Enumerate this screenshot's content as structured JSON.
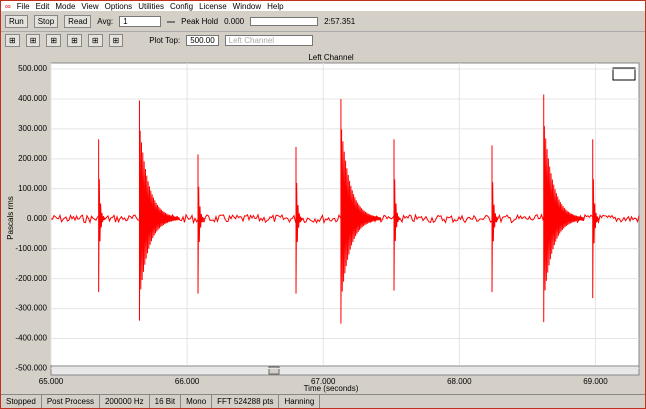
{
  "menu": [
    "File",
    "Edit",
    "Mode",
    "View",
    "Options",
    "Utilities",
    "Config",
    "License",
    "Window",
    "Help"
  ],
  "toolbar": {
    "run": "Run",
    "stop": "Stop",
    "read": "Read",
    "avg_label": "Avg:",
    "avg_value": "1",
    "peak_hold": "Peak Hold",
    "position": "0.000",
    "duration": "2:57.351",
    "plot_top_label": "Plot Top:",
    "plot_top_value": "500.00",
    "channel": "Left Channel"
  },
  "chart_data": {
    "type": "line",
    "title": "Left Channel",
    "x_label": "Time (seconds)",
    "y_label": "Pascals rms",
    "xlim": [
      65,
      69.32
    ],
    "xticks": [
      {
        "value": 65,
        "label": "65.000"
      },
      {
        "value": 66,
        "label": "66.000"
      },
      {
        "value": 67,
        "label": "67.000"
      },
      {
        "value": 68,
        "label": "68.000"
      },
      {
        "value": 69,
        "label": "69.000"
      }
    ],
    "ylim": [
      -515,
      520
    ],
    "yticks": [
      {
        "value": 500,
        "label": "500.000"
      },
      {
        "value": 400,
        "label": "400.000"
      },
      {
        "value": 300,
        "label": "300.000"
      },
      {
        "value": 200,
        "label": "200.000"
      },
      {
        "value": 100,
        "label": "100.000"
      },
      {
        "value": 0,
        "label": "0.000"
      },
      {
        "value": -100,
        "label": "-100.000"
      },
      {
        "value": -200,
        "label": "-200.000"
      },
      {
        "value": -300,
        "label": "-300.000"
      },
      {
        "value": -400,
        "label": "-400.000"
      },
      {
        "value": -500,
        "label": "-500.000"
      }
    ],
    "grid": true,
    "color": "#ff0000",
    "spikes": {
      "x": [
        65.35,
        65.65,
        66.08,
        66.8,
        67.13,
        67.52,
        68.24,
        68.62,
        68.98
      ],
      "peak": [
        265,
        395,
        215,
        240,
        400,
        265,
        245,
        415,
        265
      ],
      "trough": [
        -245,
        -340,
        -250,
        -250,
        -350,
        -240,
        -245,
        -345,
        -265
      ]
    }
  },
  "status": [
    "Stopped",
    "Post Process",
    "200000 Hz",
    "16 Bit",
    "Mono",
    "FFT 524288 pts",
    "Hanning"
  ]
}
